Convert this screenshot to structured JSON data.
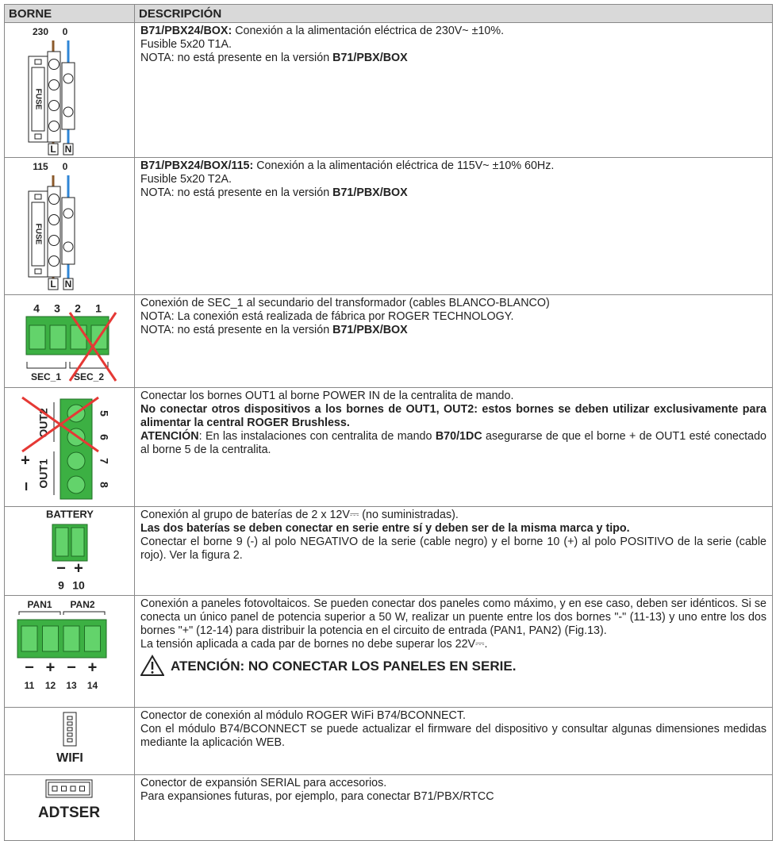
{
  "table": {
    "header": [
      "BORNE",
      "DESCRIPCIÓN"
    ],
    "rows": [
      {
        "borne": [
          "230",
          "0",
          "FUSE",
          "L",
          "N"
        ],
        "description": [
          [
            {
              "text": "B71/PBX24/BOX:",
              "bold": true
            },
            {
              "text": " Conexión a la alimentación eléctrica de 230V~ ±10%."
            }
          ],
          [
            {
              "text": "Fusible 5x20 T1A."
            }
          ],
          [
            {
              "text": "NOTA: no está presente en la versión "
            },
            {
              "text": "B71/PBX/BOX",
              "bold": true
            }
          ]
        ]
      },
      {
        "borne": [
          "115",
          "0",
          "FUSE",
          "L",
          "N"
        ],
        "description": [
          [
            {
              "text": "B71/PBX24/BOX/115:",
              "bold": true
            },
            {
              "text": " Conexión a la alimentación eléctrica de 115V~ ±10% 60Hz."
            }
          ],
          [
            {
              "text": "Fusible 5x20 T2A."
            }
          ],
          [
            {
              "text": "NOTA: no está presente en la versión "
            },
            {
              "text": "B71/PBX/BOX",
              "bold": true
            }
          ]
        ]
      },
      {
        "borne": [
          "4",
          "3",
          "2",
          "1",
          "SEC_1",
          "SEC_2"
        ],
        "description": [
          [
            {
              "text": "Conexión de SEC_1 al secundario del transformador (cables BLANCO-BLANCO)"
            }
          ],
          [
            {
              "text": "NOTA: La conexión está realizada de fábrica por ROGER TECHNOLOGY."
            }
          ],
          [
            {
              "text": "NOTA: no está presente en la versión "
            },
            {
              "text": "B71/PBX/BOX",
              "bold": true
            }
          ]
        ]
      },
      {
        "borne": [
          "OUT2",
          "OUT1",
          "5",
          "6",
          "7",
          "8",
          "+",
          "−"
        ],
        "description": [
          [
            {
              "text": "Conectar los bornes OUT1 al borne POWER IN de la centralita de mando."
            }
          ],
          [
            {
              "text": "No conectar otros dispositivos a los bornes de OUT1, OUT2: estos bornes se deben utilizar exclusivamente para alimentar la central ROGER Brushless.",
              "bold": true
            }
          ],
          [
            {
              "text": "ATENCIÓN",
              "bold": true
            },
            {
              "text": ": En las instalaciones con centralita de mando "
            },
            {
              "text": "B70/1DC",
              "bold": true
            },
            {
              "text": " asegurarse de que el borne + de OUT1 esté conectado al borne 5 de la centralita."
            }
          ]
        ]
      },
      {
        "borne": [
          "BATTERY",
          "−",
          "+",
          "9",
          "10"
        ],
        "description": [
          [
            {
              "text": "Conexión al grupo de baterías de 2 x 12V⎓ (no suministradas)."
            }
          ],
          [
            {
              "text": "Las dos baterías se deben conectar en serie entre sí y deben ser de la misma marca y tipo.",
              "bold": true
            }
          ],
          [
            {
              "text": "Conectar el borne 9 (-) al polo NEGATIVO de la serie (cable negro) y el borne 10 (+) al polo POSITIVO de la serie (cable rojo). Ver la figura 2."
            }
          ]
        ]
      },
      {
        "borne": [
          "PAN1",
          "PAN2",
          "−",
          "+",
          "−",
          "+",
          "11",
          "12",
          "13",
          "14"
        ],
        "description": [
          [
            {
              "text": "Conexión a paneles fotovoltaicos. Se pueden conectar dos paneles como máximo, y en ese caso, deben ser idénticos. Si se conecta un único panel de potencia superior a 50 W, realizar un puente entre los dos bornes \"-\" (11-13) y uno entre los dos bornes \"+\" (12-14) para distribuir la potencia en el circuito de entrada (PAN1, PAN2) (Fig.13)."
            }
          ],
          [
            {
              "text": "La tensión aplicada a cada par de bornes no debe superar los 22V⎓."
            }
          ],
          [
            {
              "text": "ATENCIÓN: NO CONECTAR LOS PANELES EN SERIE.",
              "bold": true,
              "warning": true
            }
          ]
        ]
      },
      {
        "borne": [
          "WIFI"
        ],
        "description": [
          [
            {
              "text": "Conector de conexión al módulo ROGER WiFi B74/BCONNECT."
            }
          ],
          [
            {
              "text": "Con el módulo B74/BCONNECT se puede actualizar el firmware del dispositivo y consultar algunas dimensiones medidas mediante la aplicación WEB."
            }
          ]
        ]
      },
      {
        "borne": [
          "ADTSER"
        ],
        "description": [
          [
            {
              "text": "Conector de expansión SERIAL para accesorios."
            }
          ],
          [
            {
              "text": "Para expansiones futuras, por ejemplo, para conectar B71/PBX/RTCC"
            }
          ]
        ]
      }
    ]
  }
}
